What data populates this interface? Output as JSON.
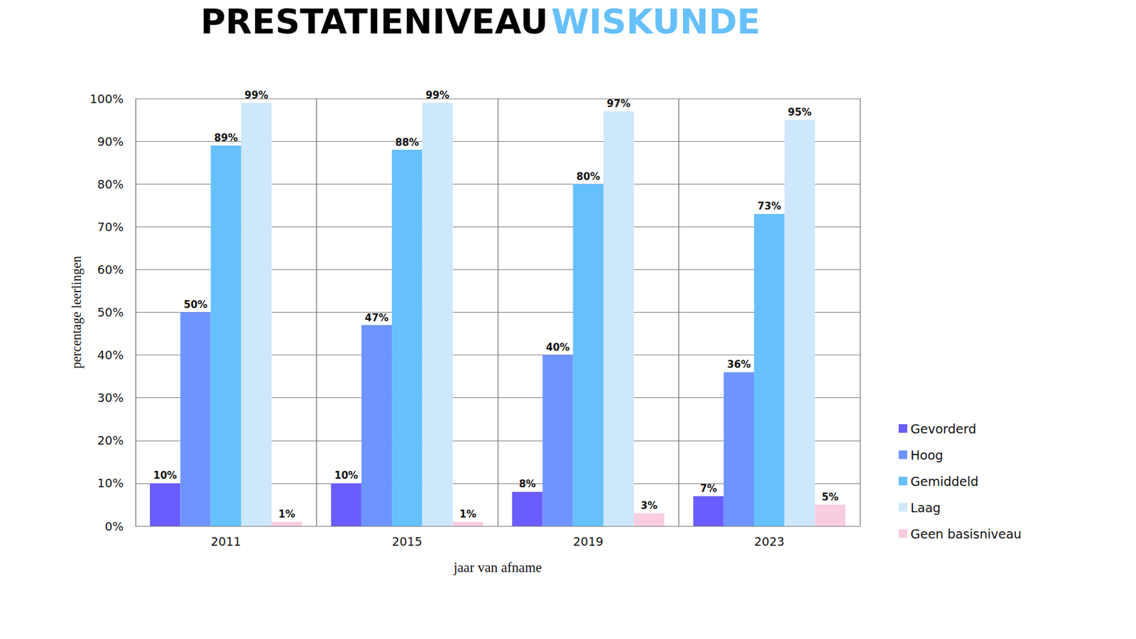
{
  "chart_data": {
    "type": "bar",
    "title": "PRESTATIENIVEAU WISKUNDE",
    "x_label": "jaar van afname",
    "y_label": "percentage leerlingen",
    "categories": [
      "2011",
      "2015",
      "2019",
      "2023"
    ],
    "series": [
      {
        "name": "Gevorderd",
        "color": "#6b5cff",
        "values": [
          10,
          10,
          8,
          7
        ],
        "value_labels": [
          "10%",
          "10%",
          "8%",
          "7%"
        ]
      },
      {
        "name": "Hoog",
        "color": "#6d94ff",
        "values": [
          50,
          47,
          40,
          36
        ],
        "value_labels": [
          "50%",
          "47%",
          "40%",
          "36%"
        ]
      },
      {
        "name": "Gemiddeld",
        "color": "#66c0fc",
        "values": [
          89,
          88,
          80,
          73
        ],
        "value_labels": [
          "89%",
          "88%",
          "80%",
          "73%"
        ]
      },
      {
        "name": "Laag",
        "color": "#cde7fb",
        "values": [
          99,
          99,
          97,
          95
        ],
        "value_labels": [
          "99%",
          "99%",
          "97%",
          "95%"
        ]
      },
      {
        "name": "Geen basisniveau",
        "color": "#f8cde0",
        "values": [
          1,
          1,
          3,
          5
        ],
        "value_labels": [
          "1%",
          "1%",
          "3%",
          "5%"
        ]
      }
    ],
    "ylim": [
      0,
      100
    ],
    "yticks": [
      {
        "value": 0,
        "label": "0%"
      },
      {
        "value": 10,
        "label": "10%"
      },
      {
        "value": 20,
        "label": "20%"
      },
      {
        "value": 30,
        "label": "30%"
      },
      {
        "value": 40,
        "label": "40%"
      },
      {
        "value": 50,
        "label": "50%"
      },
      {
        "value": 60,
        "label": "60%"
      },
      {
        "value": 70,
        "label": "70%"
      },
      {
        "value": 80,
        "label": "80%"
      },
      {
        "value": 90,
        "label": "90%"
      },
      {
        "value": 100,
        "label": "100%"
      }
    ],
    "grid": true,
    "legend": "right",
    "data_labels": true
  }
}
